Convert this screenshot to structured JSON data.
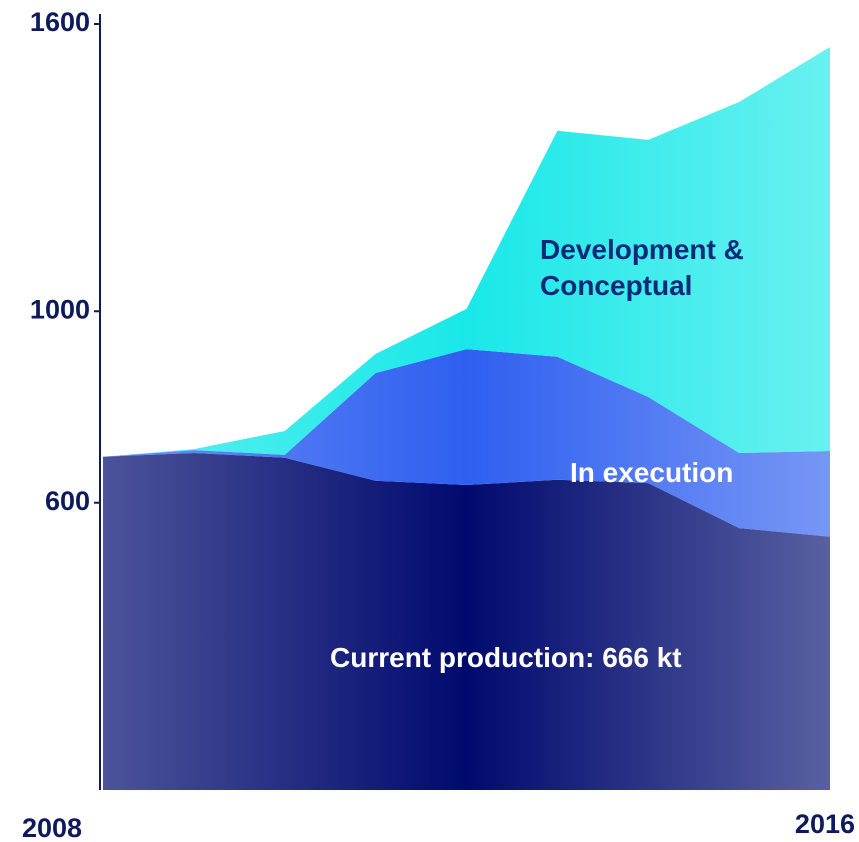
{
  "chart_data": {
    "type": "area",
    "stacked": true,
    "categories": [
      "2008",
      null,
      null,
      null,
      null,
      null,
      null,
      null,
      "2016"
    ],
    "series": [
      {
        "name": "Current production: 666 kt",
        "color": "#000a6e",
        "label_color": "#ffffff",
        "values": [
          696,
          704,
          694,
          646,
          637,
          648,
          641,
          547,
          529
        ]
      },
      {
        "name": "In execution",
        "color": "#2e5ff0",
        "label_color": "#ffffff",
        "values": [
          0,
          6,
          6,
          225,
          284,
          257,
          180,
          157,
          179
        ]
      },
      {
        "name": "Development & Conceptual",
        "color": "#19e8e8",
        "label_color": "#0d2a7a",
        "values": [
          0,
          2,
          50,
          40,
          84,
          472,
          537,
          733,
          844
        ]
      }
    ],
    "ylim": [
      0,
      1600
    ],
    "yticks": [
      600,
      1000,
      1600
    ]
  }
}
